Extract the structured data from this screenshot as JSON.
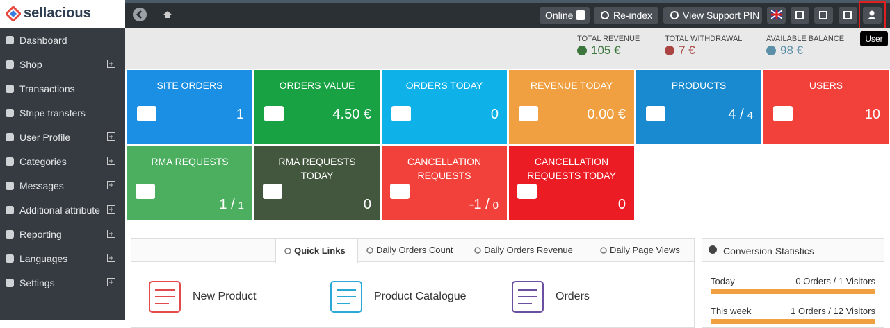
{
  "brand": "sellacious",
  "sidebar": [
    {
      "label": "Dashboard",
      "expandable": false
    },
    {
      "label": "Shop",
      "expandable": true
    },
    {
      "label": "Transactions",
      "expandable": false
    },
    {
      "label": "Stripe transfers",
      "expandable": false
    },
    {
      "label": "User Profile",
      "expandable": true
    },
    {
      "label": "Categories",
      "expandable": true
    },
    {
      "label": "Messages",
      "expandable": true
    },
    {
      "label": "Additional attribute",
      "expandable": true
    },
    {
      "label": "Reporting",
      "expandable": true
    },
    {
      "label": "Languages",
      "expandable": true
    },
    {
      "label": "Settings",
      "expandable": true
    }
  ],
  "topbar": {
    "buttons": [
      "Online",
      "Re-index",
      "View Support PIN"
    ],
    "tooltip": "User"
  },
  "stats": [
    {
      "label": "TOTAL REVENUE",
      "value": "105 €",
      "color": "#3c763d"
    },
    {
      "label": "TOTAL WITHDRAWAL",
      "value": "7 €",
      "color": "#a94442"
    },
    {
      "label": "AVAILABLE BALANCE",
      "value": "98 €",
      "color": "#5b8fa8"
    }
  ],
  "tiles": [
    {
      "title": "SITE ORDERS",
      "value": "1",
      "color": "#1a8fe3"
    },
    {
      "title": "ORDERS VALUE",
      "value": "4.50 €",
      "color": "#19a244"
    },
    {
      "title": "ORDERS TODAY",
      "value": "0",
      "color": "#0eb2e8"
    },
    {
      "title": "REVENUE TODAY",
      "value": "0.00 €",
      "color": "#f0a040"
    },
    {
      "title": "PRODUCTS",
      "value": "4 /",
      "small": "4",
      "color": "#1a8ad0"
    },
    {
      "title": "USERS",
      "value": "10",
      "color": "#f2413b"
    },
    {
      "title": "RMA REQUESTS",
      "value": "1 /",
      "small": "1",
      "color": "#4cae5f"
    },
    {
      "title": "RMA REQUESTS TODAY",
      "value": "0",
      "color": "#43573e"
    },
    {
      "title": "CANCELLATION REQUESTS",
      "value": "-1 /",
      "small": "0",
      "color": "#f2413b"
    },
    {
      "title": "CANCELLATION REQUESTS TODAY",
      "value": "0",
      "color": "#ec1c24"
    }
  ],
  "tabs": [
    "Quick Links",
    "Daily Orders Count",
    "Daily Orders Revenue",
    "Daily Page Views"
  ],
  "quick_links": [
    "New Product",
    "Product Catalogue",
    "Orders"
  ],
  "conversion": {
    "title": "Conversion Statistics",
    "rows": [
      {
        "period": "Today",
        "text": "0 Orders / 1 Visitors"
      },
      {
        "period": "This week",
        "text": "1 Orders / 12 Visitors"
      }
    ]
  }
}
